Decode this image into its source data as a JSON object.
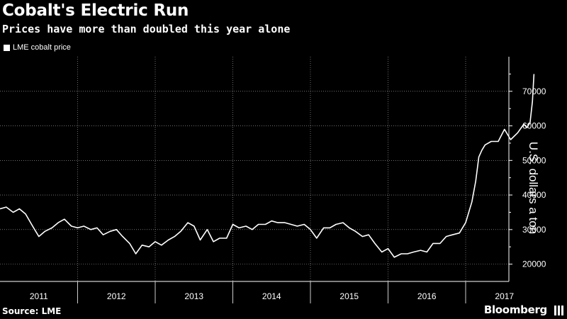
{
  "header": {
    "title": "Cobalt's Electric Run",
    "subtitle": "Prices have more than doubled this year alone"
  },
  "footer": {
    "source": "Source: LME",
    "brand": "Bloomberg"
  },
  "chart_data": {
    "type": "line",
    "title": "Cobalt's Electric Run",
    "subtitle": "Prices have more than doubled this year alone",
    "ylabel": "U.S. dollars a ton",
    "xlabel": "",
    "ylim": [
      15000,
      80000
    ],
    "yticks": [
      20000,
      30000,
      40000,
      50000,
      60000,
      70000
    ],
    "ytick_labels": [
      "20000",
      "30000",
      "40000",
      "50000",
      "60000",
      "70000"
    ],
    "x_categories": [
      "2011",
      "2012",
      "2013",
      "2014",
      "2015",
      "2016",
      "2017"
    ],
    "xlim": [
      2011.0,
      2017.92
    ],
    "grid": true,
    "legend_position": "top-left",
    "colors": {
      "background": "#000000",
      "line": "#ffffff",
      "grid": "#ffffff"
    },
    "series": [
      {
        "name": "LME cobalt price",
        "x": [
          2011.0,
          2011.08,
          2011.17,
          2011.25,
          2011.33,
          2011.42,
          2011.5,
          2011.58,
          2011.67,
          2011.75,
          2011.83,
          2011.92,
          2012.0,
          2012.08,
          2012.17,
          2012.25,
          2012.33,
          2012.42,
          2012.5,
          2012.58,
          2012.67,
          2012.75,
          2012.83,
          2012.92,
          2013.0,
          2013.08,
          2013.17,
          2013.25,
          2013.33,
          2013.42,
          2013.5,
          2013.58,
          2013.67,
          2013.75,
          2013.83,
          2013.92,
          2014.0,
          2014.08,
          2014.17,
          2014.25,
          2014.33,
          2014.42,
          2014.5,
          2014.58,
          2014.67,
          2014.75,
          2014.83,
          2014.92,
          2015.0,
          2015.08,
          2015.17,
          2015.25,
          2015.33,
          2015.42,
          2015.5,
          2015.58,
          2015.67,
          2015.75,
          2015.83,
          2015.92,
          2016.0,
          2016.08,
          2016.17,
          2016.25,
          2016.33,
          2016.42,
          2016.5,
          2016.58,
          2016.67,
          2016.75,
          2016.83,
          2016.92,
          2017.0,
          2017.04,
          2017.08,
          2017.13,
          2017.17,
          2017.21,
          2017.25,
          2017.33,
          2017.42,
          2017.5,
          2017.58,
          2017.67,
          2017.75,
          2017.79,
          2017.83,
          2017.86,
          2017.88
        ],
        "y": [
          36000,
          36500,
          35000,
          36000,
          34500,
          31000,
          28000,
          29500,
          30500,
          32000,
          33000,
          31000,
          30500,
          31000,
          30000,
          30500,
          28500,
          29500,
          30000,
          28000,
          26000,
          23000,
          25500,
          25000,
          26500,
          25500,
          27000,
          28000,
          29500,
          32000,
          31000,
          27000,
          30000,
          26500,
          27500,
          27500,
          31500,
          30500,
          31000,
          30000,
          31500,
          31500,
          32500,
          32000,
          32000,
          31500,
          31000,
          31500,
          30000,
          27500,
          30500,
          30500,
          31500,
          32000,
          30500,
          29500,
          28000,
          28500,
          26000,
          23500,
          24500,
          22000,
          23000,
          23000,
          23500,
          24000,
          23500,
          26000,
          26000,
          28000,
          28500,
          29000,
          32000,
          35000,
          38000,
          44000,
          51000,
          53000,
          54500,
          55500,
          55500,
          59000,
          56000,
          58000,
          60500,
          59500,
          61000,
          67000,
          75000
        ]
      }
    ]
  }
}
